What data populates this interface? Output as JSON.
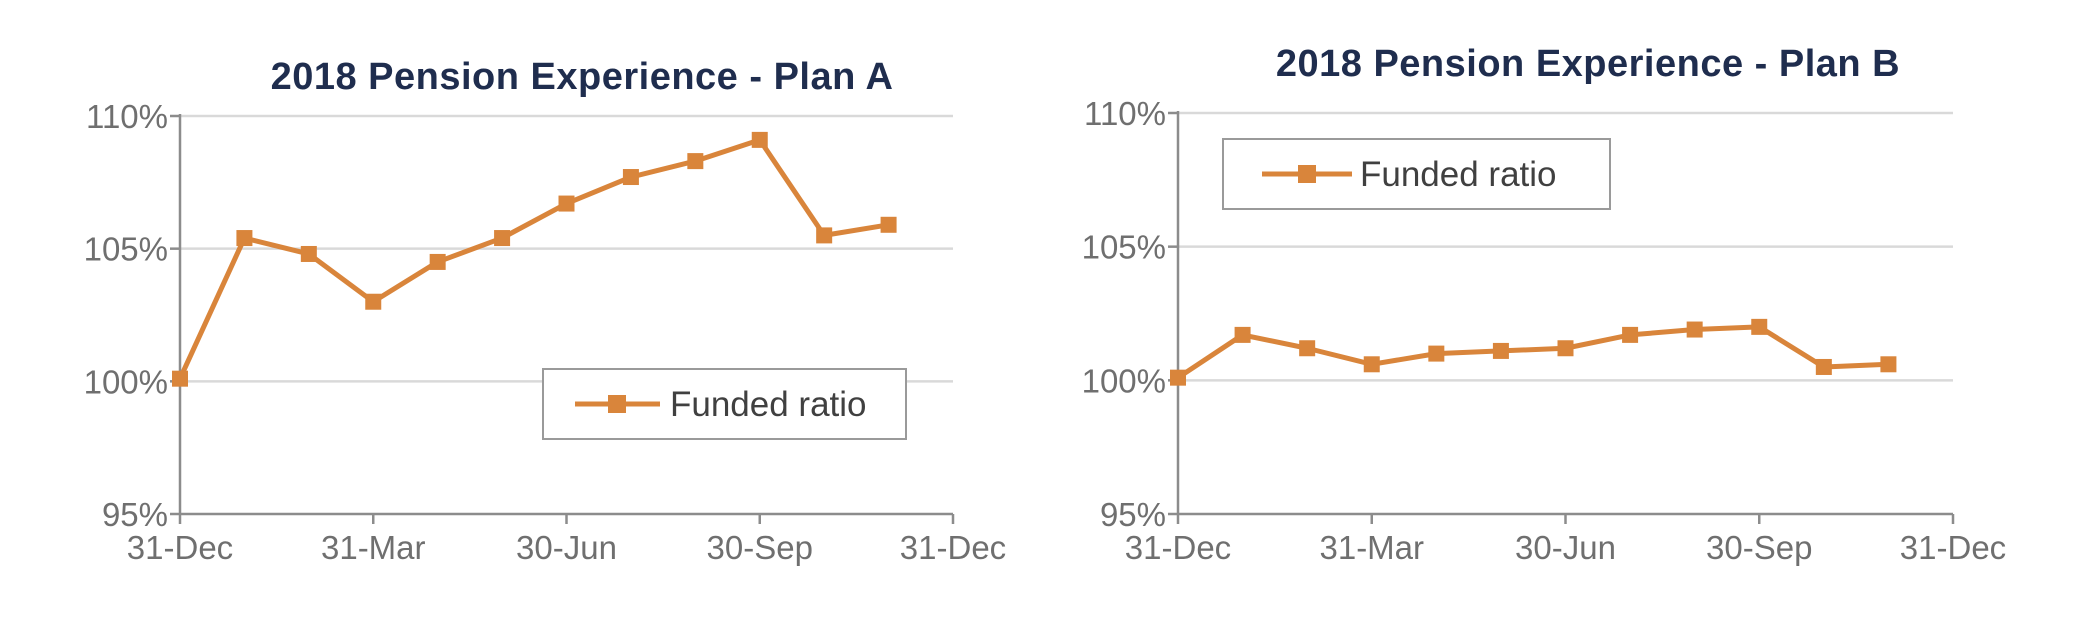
{
  "colors": {
    "series": "#d9853b",
    "title": "#1f2d4e"
  },
  "chart_data": [
    {
      "type": "line",
      "title": "2018 Pension Experience - Plan A",
      "xlabel": "",
      "ylabel": "",
      "x_ticks": [
        "31-Dec",
        "31-Mar",
        "30-Jun",
        "30-Sep",
        "31-Dec"
      ],
      "y_ticks": [
        "95%",
        "100%",
        "105%",
        "110%"
      ],
      "ylim": [
        95,
        110
      ],
      "legend": "bottom-right",
      "series": [
        {
          "name": "Funded ratio",
          "marker": "square",
          "values": [
            100.1,
            105.4,
            104.8,
            103.0,
            104.5,
            105.4,
            106.7,
            107.7,
            108.3,
            109.1,
            105.5,
            105.9
          ]
        }
      ]
    },
    {
      "type": "line",
      "title": "2018 Pension Experience - Plan B",
      "xlabel": "",
      "ylabel": "",
      "x_ticks": [
        "31-Dec",
        "31-Mar",
        "30-Jun",
        "30-Sep",
        "31-Dec"
      ],
      "y_ticks": [
        "95%",
        "100%",
        "105%",
        "110%"
      ],
      "ylim": [
        95,
        110
      ],
      "legend": "top-left",
      "series": [
        {
          "name": "Funded ratio",
          "marker": "square",
          "values": [
            100.1,
            101.7,
            101.2,
            100.6,
            101.0,
            101.1,
            101.2,
            101.7,
            101.9,
            102.0,
            100.5,
            100.6
          ]
        }
      ]
    }
  ]
}
